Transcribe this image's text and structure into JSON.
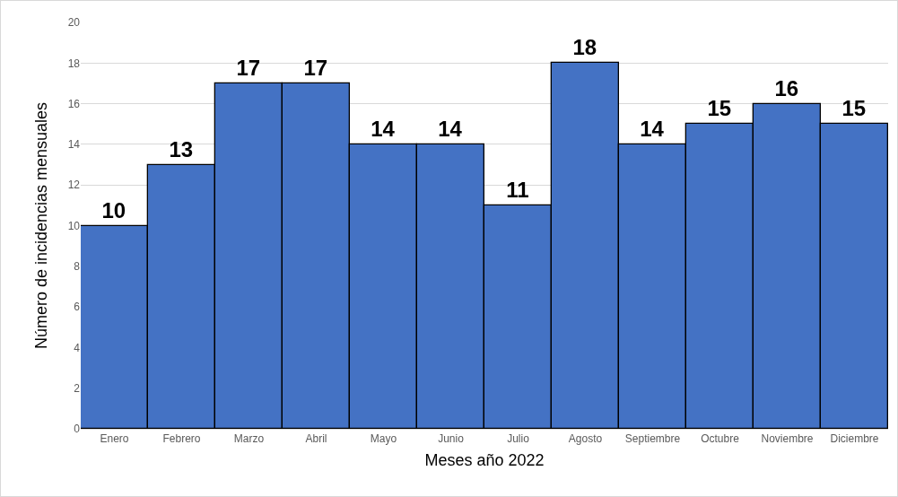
{
  "chart_data": {
    "type": "bar",
    "xlabel": "Meses año 2022",
    "ylabel": "Número de incidencias mensuales",
    "categories": [
      "Enero",
      "Febrero",
      "Marzo",
      "Abril",
      "Mayo",
      "Junio",
      "Julio",
      "Agosto",
      "Septiembre",
      "Octubre",
      "Noviembre",
      "Diciembre"
    ],
    "values": [
      10,
      13,
      17,
      17,
      14,
      14,
      11,
      18,
      14,
      15,
      16,
      15
    ],
    "color": "#4472c4",
    "ylim": [
      0,
      20
    ],
    "yticks": [
      0,
      2,
      4,
      6,
      8,
      10,
      12,
      14,
      16,
      18,
      20
    ],
    "grid": "y",
    "data_labels": true
  }
}
